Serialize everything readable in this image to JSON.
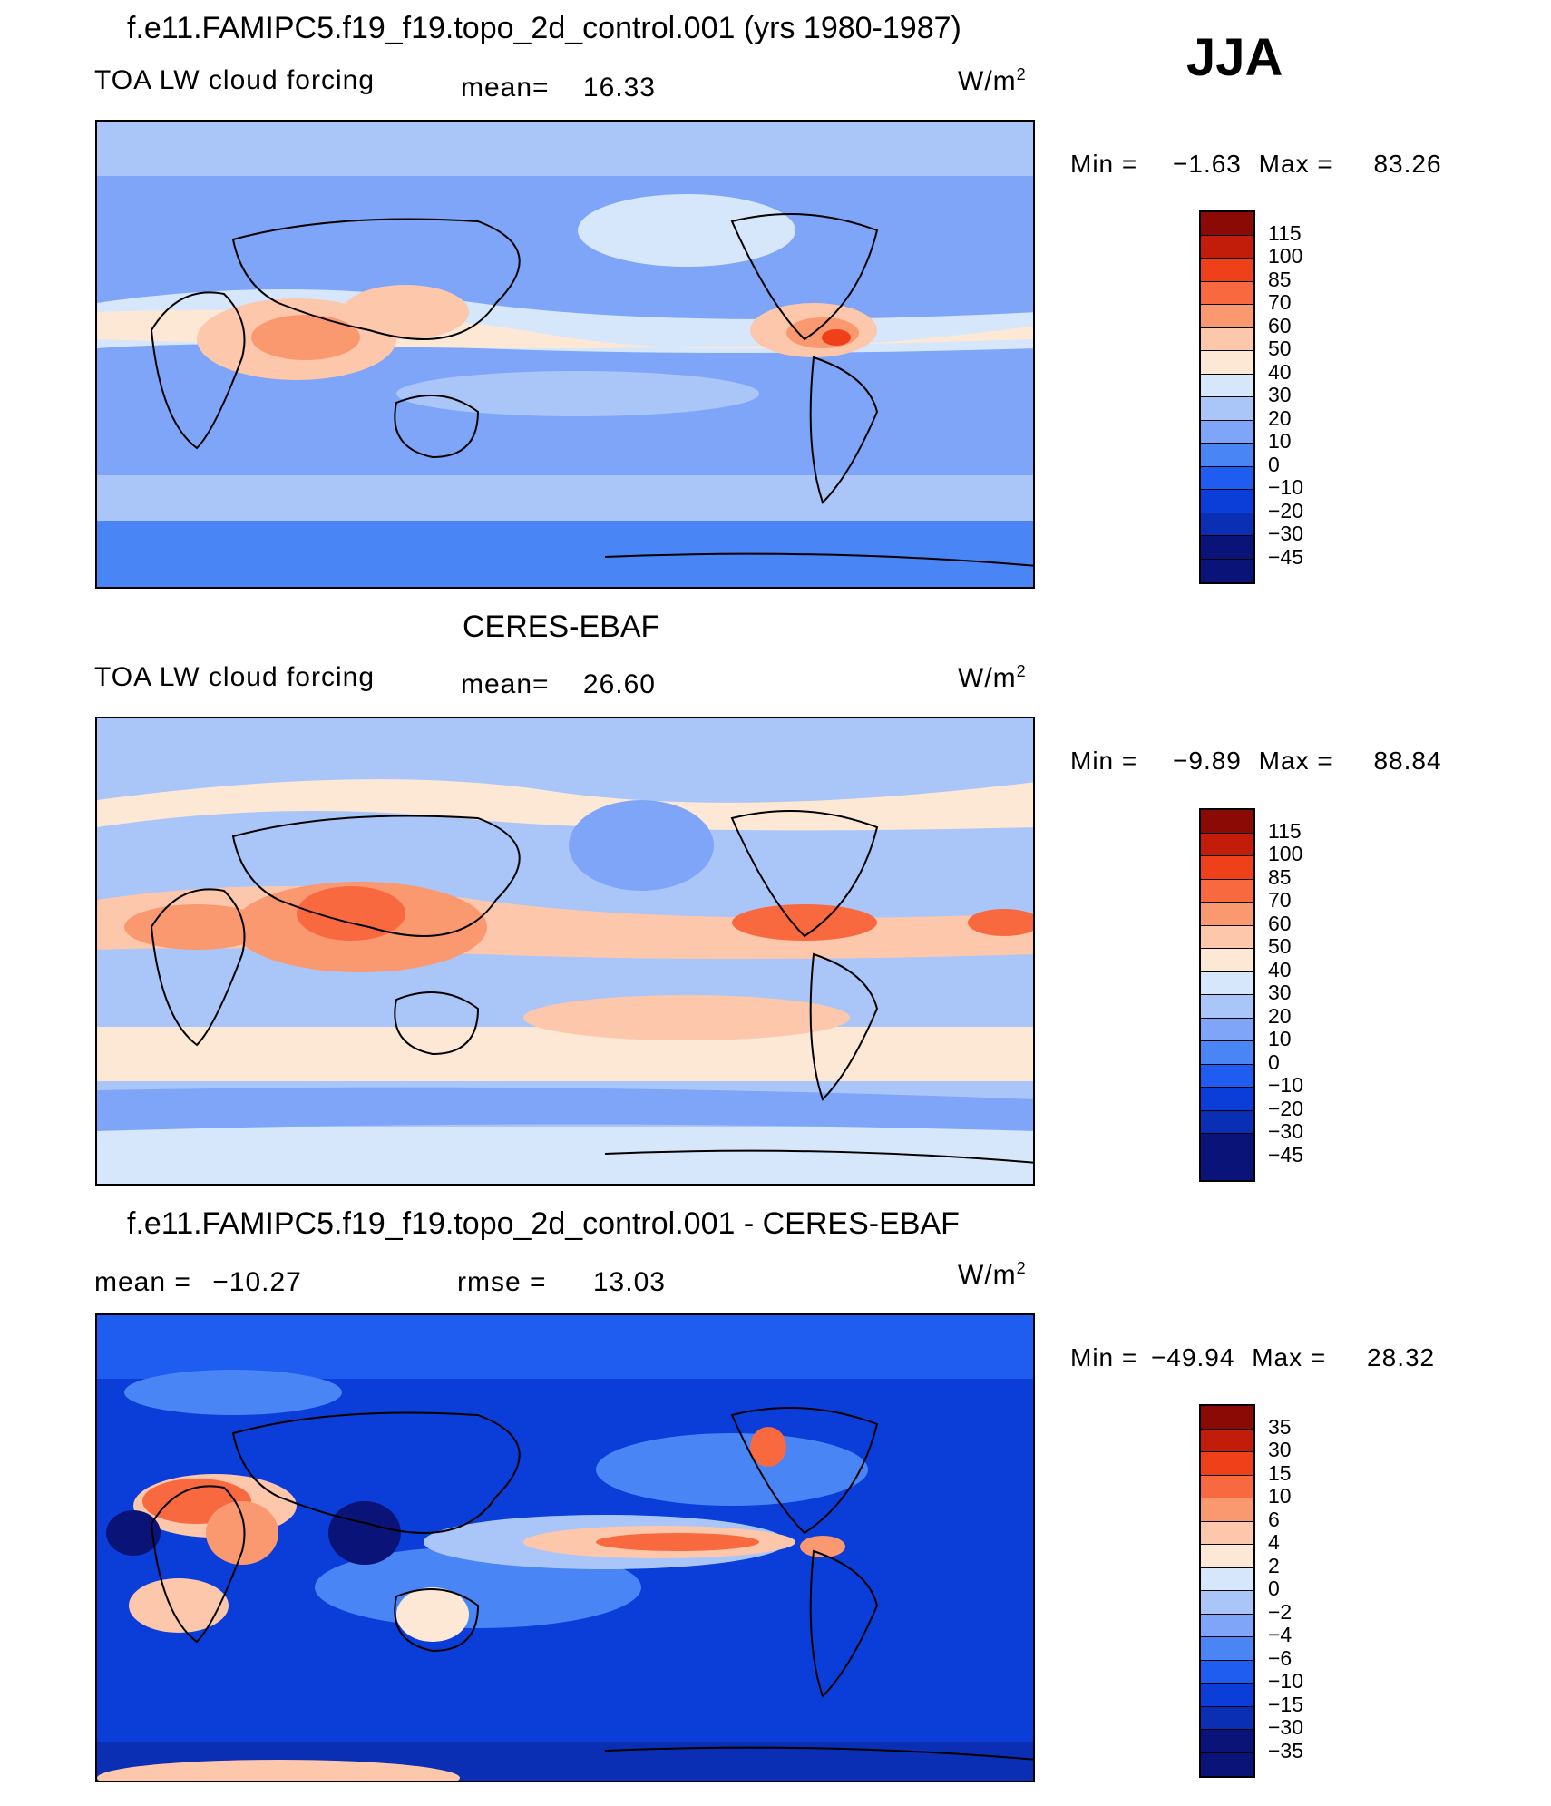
{
  "season": "JJA",
  "colors": {
    "abs": [
      "#0a1478",
      "#0a2fb4",
      "#0b3ed8",
      "#1f5df0",
      "#4a85f5",
      "#7ea5f7",
      "#aac6f8",
      "#d6e6fb",
      "#fde8d6",
      "#fcc7ab",
      "#fa9870",
      "#f8693f",
      "#f0401a",
      "#c21c0a",
      "#8c0a05"
    ],
    "diff": [
      "#0a1478",
      "#0a2fb4",
      "#0b3ed8",
      "#1f5df0",
      "#4a85f5",
      "#7ea5f7",
      "#aac6f8",
      "#d6e6fb",
      "#fde8d6",
      "#fcc7ab",
      "#fa9870",
      "#f8693f",
      "#f0401a",
      "#c21c0a",
      "#8c0a05"
    ]
  },
  "panels": [
    {
      "title": "f.e11.FAMIPC5.f19_f19.topo_2d_control.001 (yrs 1980-1987)",
      "variable": "TOA LW cloud forcing",
      "mean_label": "mean=",
      "mean_value": "16.33",
      "units_base": "W/m",
      "units_exp": "2",
      "min_label": "Min =",
      "min_value": "−1.63",
      "max_label": "Max =",
      "max_value": "83.26",
      "levels": [
        "115",
        "100",
        "85",
        "70",
        "60",
        "50",
        "40",
        "30",
        "20",
        "10",
        "0",
        "−10",
        "−20",
        "−30",
        "−45"
      ]
    },
    {
      "title": "CERES-EBAF",
      "variable": "TOA LW cloud forcing",
      "mean_label": "mean=",
      "mean_value": "26.60",
      "units_base": "W/m",
      "units_exp": "2",
      "min_label": "Min =",
      "min_value": "−9.89",
      "max_label": "Max =",
      "max_value": "88.84",
      "levels": [
        "115",
        "100",
        "85",
        "70",
        "60",
        "50",
        "40",
        "30",
        "20",
        "10",
        "0",
        "−10",
        "−20",
        "−30",
        "−45"
      ]
    },
    {
      "title": "f.e11.FAMIPC5.f19_f19.topo_2d_control.001 - CERES-EBAF",
      "mean_label": "mean =",
      "mean_value": "−10.27",
      "rmse_label": "rmse =",
      "rmse_value": "13.03",
      "units_base": "W/m",
      "units_exp": "2",
      "min_label": "Min =",
      "min_value": "−49.94",
      "max_label": "Max =",
      "max_value": "28.32",
      "levels": [
        "35",
        "30",
        "15",
        "10",
        "6",
        "4",
        "2",
        "0",
        "−2",
        "−4",
        "−6",
        "−10",
        "−15",
        "−30",
        "−35"
      ]
    }
  ]
}
